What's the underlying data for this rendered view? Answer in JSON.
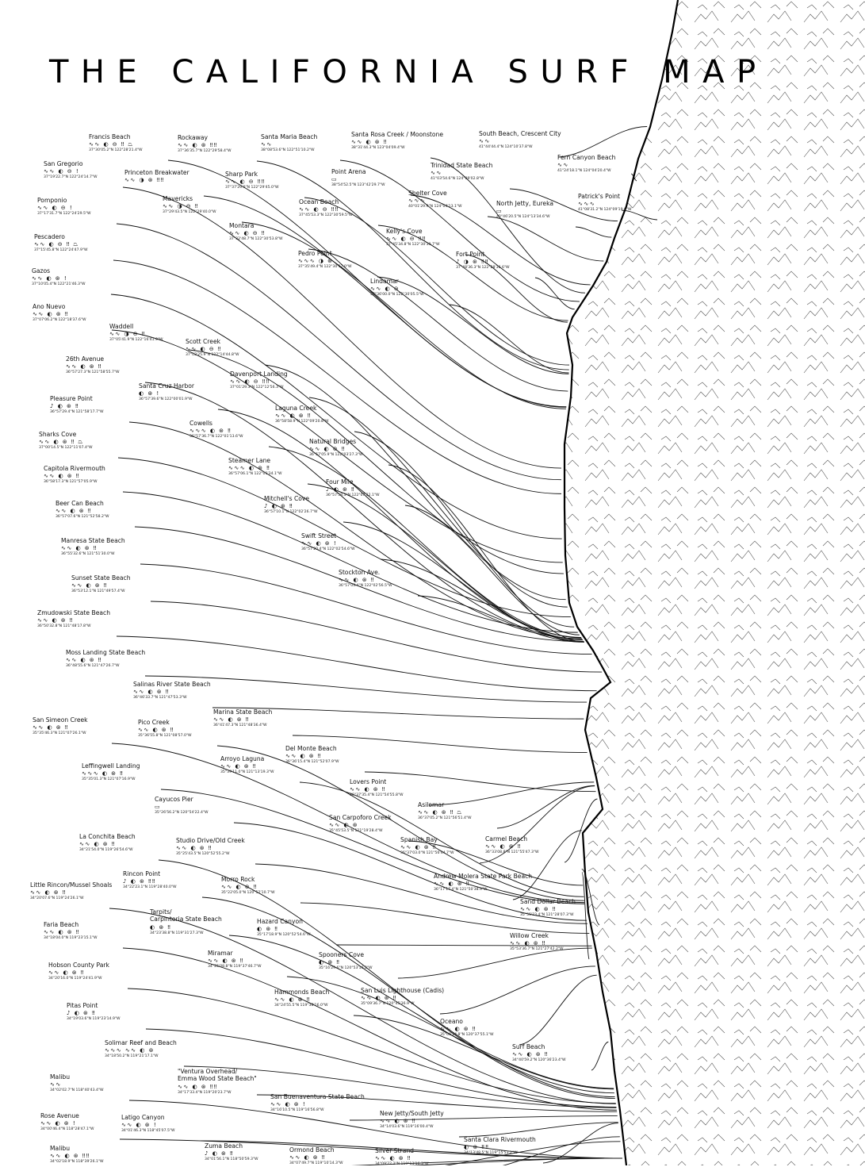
{
  "title": "THE CALIFORNIA SURF MAP",
  "colors": {
    "ink": "#000000",
    "background": "#ffffff"
  },
  "legend_icons": {
    "wave": "∿∿",
    "tide": "◐",
    "swell": "⊛",
    "crowd": "‼",
    "break": "⏢",
    "none": "▭"
  },
  "spots": [
    {
      "name": "Francis Beach",
      "icons": "∿∿ ◐ ⊖ ‼ ⏢",
      "coords": "37°30'05.2\"N 122°28'21.4\"W"
    },
    {
      "name": "Rockaway",
      "icons": "∿∿ ◐ ⊛ ‼‼",
      "coords": "37°36'35.7\"N 122°29'58.4\"W"
    },
    {
      "name": "Santa Maria Beach",
      "icons": "∿∿",
      "coords": "38°08'53.6\"N 122°51'10.2\"W"
    },
    {
      "name": "Santa Rosa Creek / Moonstone",
      "icons": "∿∿ ◐ ⊛ ‼",
      "coords": "38°31'44.3\"N 123°04'09.4\"W"
    },
    {
      "name": "South Beach, Crescent City",
      "icons": "∿∿",
      "coords": "41°44'44.4\"N 124°10'37.8\"W"
    },
    {
      "name": "Fern Canyon Beach",
      "icons": "∿∿",
      "coords": "41°24'18.1\"N 124°04'20.4\"W"
    },
    {
      "name": "San Gregorio",
      "icons": "∿∿ ◐ ⊖ !",
      "coords": "37°19'22.7\"N 122°24'14.7\"W"
    },
    {
      "name": "Princeton Breakwater",
      "icons": "∿∿ ◑ ⊛ ‼‼",
      "coords": ""
    },
    {
      "name": "Sharp Park",
      "icons": "∿∿ ◐ ⊖ ‼‼",
      "coords": "37°37'29.0\"N 122°29'45.0\"W"
    },
    {
      "name": "Point Arena",
      "icons": "▭",
      "coords": "38°54'52.5\"N 123°42'29.7\"W"
    },
    {
      "name": "Trinidad State Beach",
      "icons": "∿∿",
      "coords": "41°03'54.6\"N 124°09'02.8\"W"
    },
    {
      "name": "Pomponio",
      "icons": "∿∿ ◐ ⊖ !",
      "coords": "37°17'31.7\"N 122°24'29.5\"W"
    },
    {
      "name": "Mavericks",
      "icons": "∿∿ ◑ ⊖ ‼",
      "coords": "37°29'43.5\"N 122°29'40.0\"W"
    },
    {
      "name": "Ocean Beach",
      "icons": "∿∿ ◐ ⊖ ‼‼",
      "coords": "37°45'53.3\"N 122°30'59.5\"W"
    },
    {
      "name": "Shelter Cove",
      "icons": "∿∿∿",
      "coords": "40°01'29.9\"N 124°04'13.1\"W"
    },
    {
      "name": "North Jetty, Eureka",
      "icons": "▭",
      "coords": "40°46'20.5\"N 124°13'34.6\"W"
    },
    {
      "name": "Patrick's Point",
      "icons": "∿∿∿",
      "coords": "41°08'31.2\"N 124°09'19.6\"W"
    },
    {
      "name": "Montara",
      "icons": "∿∿ ◐ ⊖ ‼",
      "coords": "37°32'48.7\"N 122°30'53.8\"W"
    },
    {
      "name": "Kelly's Cove",
      "icons": "∿∿ ◐ ⊖ ‼‼",
      "coords": "37°45'34.8\"N 122°30'39.7\"W"
    },
    {
      "name": "Pescadero",
      "icons": "∿∿ ◐ ⊖ ‼ ⏢",
      "coords": "37°15'45.8\"N 122°24'47.9\"W"
    },
    {
      "name": "Pedro Point",
      "icons": "∿∿∿ ◑ ⊛",
      "coords": "37°35'49.4\"N 122°30'17.0\"W"
    },
    {
      "name": "Fort Point",
      "icons": "♪ ◑ ⊛ ‼‼",
      "coords": "37°48'36.3\"N 122°28'36.6\"W"
    },
    {
      "name": "Gazos",
      "icons": "∿∿ ◐ ⊛ !",
      "coords": "37°10'05.4\"N 122°21'46.3\"W"
    },
    {
      "name": "Lindamar",
      "icons": "∿∿ ◐ ⊖",
      "coords": "37°36'00.0\"N 122°30'05.5\"W"
    },
    {
      "name": "Ano Nuevo",
      "icons": "∿∿ ◐ ⊛ ‼",
      "coords": "37°07'06.2\"N 122°18'37.6\"W"
    },
    {
      "name": "Waddell",
      "icons": "∿∿ ◑ ⊖ ‼",
      "coords": "37°05'41.9\"N 122°16'41.9\"W"
    },
    {
      "name": "Scott Creek",
      "icons": "∿∿ ◐ ⊖ ‼",
      "coords": "37°02'25.9\"N 122°14'44.8\"W"
    },
    {
      "name": "26th Avenue",
      "icons": "∿∿ ◐ ⊛ ‼",
      "coords": "36°57'27.3\"N 121°58'55.7\"W"
    },
    {
      "name": "Davenport Landing",
      "icons": "∿∿ ◐ ⊖ ‼‼",
      "coords": "37°01'29.3\"N 122°12'56.3\"W"
    },
    {
      "name": "Santa Cruz Harbor",
      "icons": "◐ ⊛ !",
      "coords": "36°57'39.6\"N 122°00'01.9\"W"
    },
    {
      "name": "Pleasure Point",
      "icons": "♪ ◐ ⊛ ‼",
      "coords": "36°57'29.4\"N 121°58'17.7\"W"
    },
    {
      "name": "Laguna Creek",
      "icons": "∿∿ ◐ ⊛ ‼",
      "coords": "36°58'58.9\"N 122°09'20.8\"W"
    },
    {
      "name": "Cowells",
      "icons": "∿∿∿ ◐ ⊛ ‼",
      "coords": "36°57'36.7\"N 122°01'13.6\"W"
    },
    {
      "name": "Sharks Cove",
      "icons": "∿∿ ◐ ⊛ ‼ ⏢",
      "coords": "37°00'14.5\"N 122°11'07.4\"W"
    },
    {
      "name": "Natural Bridges",
      "icons": "∿∿ ◐ ⊛ ‼",
      "coords": "36°57'05.9\"N 122°03'27.3\"W"
    },
    {
      "name": "Steamer Lane",
      "icons": "∿∿∿ ◐ ⊛ ‼",
      "coords": "36°57'06.1\"N 122°01'34.1\"W"
    },
    {
      "name": "Capitola Rivermouth",
      "icons": "∿∿ ◐ ⊛ ‼",
      "coords": "36°58'17.3\"N 121°57'05.9\"W"
    },
    {
      "name": "Four Mile",
      "icons": "♪ ◐ ⊛ ‼",
      "coords": "36°57'58.5\"N 122°07'32.1\"W"
    },
    {
      "name": "Mitchell's Cove",
      "icons": "♪ ◐ ⊛ ‼",
      "coords": "36°57'10.1\"N 122°02'26.7\"W"
    },
    {
      "name": "Beer Can Beach",
      "icons": "∿∿ ◐ ⊛ ‼",
      "coords": "36°57'07.6\"N 121°52'58.2\"W"
    },
    {
      "name": "Swift Street",
      "icons": "∿∿ ◐ ⊛ !",
      "coords": "36°57'20.4\"N 122°02'54.6\"W"
    },
    {
      "name": "Manresa State Beach",
      "icons": "∿∿ ◐ ⊛ ‼",
      "coords": "36°55'32.6\"N 121°51'30.0\"W"
    },
    {
      "name": "Stockton Ave.",
      "icons": "∿∿ ◐ ⊛ ‼",
      "coords": "36°57'03.4\"N 122°02'56.5\"W"
    },
    {
      "name": "Sunset State Beach",
      "icons": "∿∿ ◐ ⊛ ‼",
      "coords": "36°53'12.1\"N 121°49'57.4\"W"
    },
    {
      "name": "Zmudowski State Beach",
      "icons": "∿∿ ◐ ⊛ ‼",
      "coords": "36°50'32.8\"N 121°48'17.8\"W"
    },
    {
      "name": "Moss Landing State Beach",
      "icons": "∿∿ ◐ ⊛ ‼",
      "coords": "36°48'55.6\"N 121°47'26.7\"W"
    },
    {
      "name": "Salinas River State Beach",
      "icons": "∿∿ ◐ ⊛ ‼",
      "coords": "36°46'33.7\"N 121°47'53.3\"W"
    },
    {
      "name": "Marina State Beach",
      "icons": "∿∿ ◐ ⊛ ‼",
      "coords": "36°41'47.3\"N 121°48'36.4\"W"
    },
    {
      "name": "San Simeon Creek",
      "icons": "∿∿ ◐ ⊛ ‼",
      "coords": "35°35'46.3\"N 121°07'26.1\"W"
    },
    {
      "name": "Pico Creek",
      "icons": "∿∿ ◐ ⊛ ‼",
      "coords": "35°36'55.8\"N 121°08'57.0\"W"
    },
    {
      "name": "Del Monte Beach",
      "icons": "∿∿ ◐ ⊛ ‼",
      "coords": "36°36'15.4\"N 121°52'07.9\"W"
    },
    {
      "name": "Arroyo Laguna",
      "icons": "∿∿ ◐ ⊛ ‼",
      "coords": "35°39'11.0\"N 121°13'19.3\"W"
    },
    {
      "name": "Leffingwell Landing",
      "icons": "∿∿∿ ◐ ⊛ ‼",
      "coords": "35°35'01.3\"N 121°07'16.9\"W"
    },
    {
      "name": "Lovers Point",
      "icons": "∿∿ ◐ ⊛ ‼",
      "coords": "36°37'35.4\"N 121°54'55.8\"W"
    },
    {
      "name": "Cayucos Pier",
      "icons": "▭",
      "coords": "35°26'56.2\"N 120°54'22.4\"W"
    },
    {
      "name": "Asilomar",
      "icons": "∿∿ ◐ ⊛ ‼ ⏢",
      "coords": "36°37'05.2\"N 121°56'51.4\"W"
    },
    {
      "name": "San Carpoforo Creek",
      "icons": "∿∿ ◐ ⊛",
      "coords": "35°45'53.5\"N 121°19'28.4\"W"
    },
    {
      "name": "La Conchita Beach",
      "icons": "∿∿ ◐ ⊛ ‼",
      "coords": "34°21'54.0\"N 119°26'54.6\"W"
    },
    {
      "name": "Studio Drive/Old Creek",
      "icons": "∿∿ ◐ ⊛ ‼",
      "coords": "35°25'43.5\"N 120°52'55.2\"W"
    },
    {
      "name": "Spanish Bay",
      "icons": "∿∿ ◐ ⊛ ‼",
      "coords": "36°37'03.0\"N 121°56'44.7\"W"
    },
    {
      "name": "Carmel Beach",
      "icons": "∿∿ ◐ ⊛ ‼",
      "coords": "36°33'08.8\"N 121°55'47.3\"W"
    },
    {
      "name": "Little Rincon/Mussel Shoals",
      "icons": "∿∿ ◐ ⊛ ‼",
      "coords": "34°20'07.6\"N 119°24'26.1\"W"
    },
    {
      "name": "Rincon Point",
      "icons": "♪ ◐ ⊛ ‼‼",
      "coords": "34°22'23.1\"N 119°28'40.0\"W"
    },
    {
      "name": "Morro Rock",
      "icons": "∿∿ ◐ ⊛ ‼",
      "coords": "35°22'05.0\"N 120°52'10.7\"W"
    },
    {
      "name": "Andrew Molera State Park Beach",
      "icons": "∿∿ ◐ ⊛ ‼",
      "coords": "36°17'17.4\"N 121°50'38.9\"W"
    },
    {
      "name": "Sand Dollar Beach",
      "icons": "∿∿ ◐ ⊛ ‼",
      "coords": "35°55'23.4\"N 121°28'07.3\"W"
    },
    {
      "name": "Tarpits/\nCarpinteria State Beach",
      "icons": "◐ ⊛ ‼",
      "coords": "34°23'38.8\"N 119°31'27.3\"W"
    },
    {
      "name": "Faria Beach",
      "icons": "∿∿ ◐ ⊛ ‼",
      "coords": "34°18'04.0\"N 119°23'15.1\"W"
    },
    {
      "name": "Hazard Canyon",
      "icons": "◐ ⊛ ‼",
      "coords": "35°17'18.9\"N 120°52'54.6\"W"
    },
    {
      "name": "Willow Creek",
      "icons": "∿∿ ◐ ⊛ ‼",
      "coords": "35°53'36.7\"N 121°27'42.2\"W"
    },
    {
      "name": "Spooners Cove",
      "icons": "◐ ⊛ ‼",
      "coords": "35°16'29.6\"N 120°53'16.2\"W"
    },
    {
      "name": "Hobson County Park",
      "icons": "∿∿ ◐ ⊛ ‼",
      "coords": "34°20'16.0\"N 119°24'41.9\"W"
    },
    {
      "name": "Miramar",
      "icons": "∿∿ ◐ ⊛ ‼",
      "coords": "34°25'08.8\"N 119°37'46.7\"W"
    },
    {
      "name": "Hammonds Beach",
      "icons": "∿∿ ◐ ⊛ ‼",
      "coords": "34°24'55.5\"N 119°38'16.0\"W"
    },
    {
      "name": "San Luis Lighthouse (Cadis)",
      "icons": "∿∿ ◐ ⊛ ‼",
      "coords": "35°09'36.7\"N 120°45'36.9\"W"
    },
    {
      "name": "Pitas Point",
      "icons": "♪ ◐ ⊛ ‼",
      "coords": "34°19'03.6\"N 119°23'14.9\"W"
    },
    {
      "name": "Oceano",
      "icons": "∿∿ ◐ ⊛ ‼",
      "coords": "35°06'14.8\"N 120°37'55.1\"W"
    },
    {
      "name": "Solimar Reef and Beach",
      "icons": "∿∿∿ ∿∿ ◐ ⊛",
      "coords": "34°18'50.2\"N 119°21'17.1\"W"
    },
    {
      "name": "Surf Beach",
      "icons": "∿∿ ◐ ⊛ ‼",
      "coords": "34°40'59.2\"N 120°36'23.4\"W"
    },
    {
      "name": "Malibu",
      "icons": "∿∿",
      "coords": "34°02'02.7\"N 118°40'43.4\"W"
    },
    {
      "name": "\"Ventura Overhead/\nEmma Wood State Beach\"",
      "icons": "∿∿ ◐ ⊛ ‼‼",
      "coords": "34°17'33.4\"N 119°20'23.7\"W"
    },
    {
      "name": "San Buenaventura State Beach",
      "icons": "∿∿ ◐ ⊛ !",
      "coords": "34°16'10.5\"N 119°16'56.8\"W"
    },
    {
      "name": "Rose Avenue",
      "icons": "∿∿ ◐ ⊛ !",
      "coords": "34°00'46.4\"N 118°28'47.1\"W"
    },
    {
      "name": "Latigo Canyon",
      "icons": "∿∿ ◐ ⊛ !",
      "coords": "34°01'46.3\"N 118°45'07.5\"W"
    },
    {
      "name": "New Jetty/South Jetty",
      "icons": "∿∿ ◐ ⊛ ‼",
      "coords": "34°14'03.6\"N 119°16'00.4\"W"
    },
    {
      "name": "Santa Clara Rivermouth",
      "icons": "◐ ⊛ ‼‼",
      "coords": "34°13'48.5\"N 119°15'53.2\"W"
    },
    {
      "name": "Malibu",
      "icons": "∿∿ ◐ ⊛ ‼‼",
      "coords": "34°02'18.9\"N 118°39'26.1\"W"
    },
    {
      "name": "Zuma Beach",
      "icons": "♪ ◐ ⊛ ‼",
      "coords": "34°01'56.1\"N 118°50'59.3\"W"
    },
    {
      "name": "Ormond Beach",
      "icons": "∿∿ ◐ ⊛ ‼",
      "coords": "34°07'49.7\"N 119°10'14.3\"W"
    },
    {
      "name": "Silver Strand",
      "icons": "∿∿ ◐ ⊛ ‼",
      "coords": "34°09'22.2\"N 119°13'16.3\"W"
    }
  ]
}
